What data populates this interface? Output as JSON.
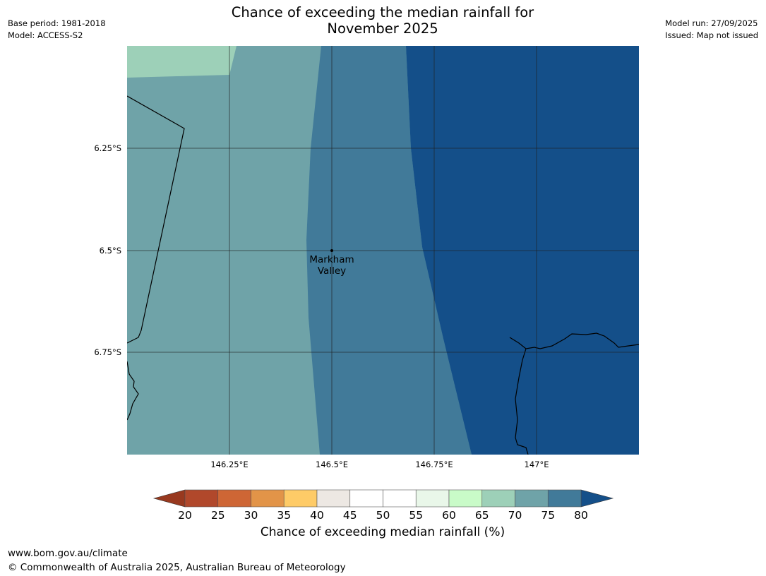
{
  "header": {
    "title_line1": "Chance of exceeding the median rainfall for",
    "title_line2": "November 2025",
    "base_period": "Base period: 1981-2018",
    "model": "Model: ACCESS-S2",
    "model_run": "Model run: 27/09/2025",
    "issued": "Issued: Map not issued"
  },
  "map": {
    "lat_ticks": [
      "6.25°S",
      "6.5°S",
      "6.75°S"
    ],
    "lon_ticks": [
      "146.25°E",
      "146.5°E",
      "146.75°E",
      "147°E"
    ],
    "place": {
      "name_line1": "Markham",
      "name_line2": "Valley"
    },
    "zones": [
      {
        "range": "65-70",
        "color": "#9dd0b8"
      },
      {
        "range": "70-75",
        "color": "#6fa3a8"
      },
      {
        "range": "75-80",
        "color": "#417a99"
      },
      {
        "range": ">80",
        "color": "#144f89"
      }
    ]
  },
  "colorbar": {
    "title": "Chance of exceeding median rainfall (%)",
    "ticks": [
      "20",
      "25",
      "30",
      "35",
      "40",
      "45",
      "50",
      "55",
      "60",
      "65",
      "70",
      "75",
      "80"
    ],
    "under_color": "#98391f",
    "over_color": "#144f89",
    "colors": [
      "#b1482b",
      "#ce6635",
      "#e29448",
      "#fecb67",
      "#ede8e3",
      "#ffffff",
      "#ffffff",
      "#e9f7e9",
      "#c9fbc8",
      "#9dd0b8",
      "#6fa3a8",
      "#417a99"
    ]
  },
  "footer": {
    "url": "www.bom.gov.au/climate",
    "copyright": "© Commonwealth of Australia 2025, Australian Bureau of Meteorology"
  }
}
